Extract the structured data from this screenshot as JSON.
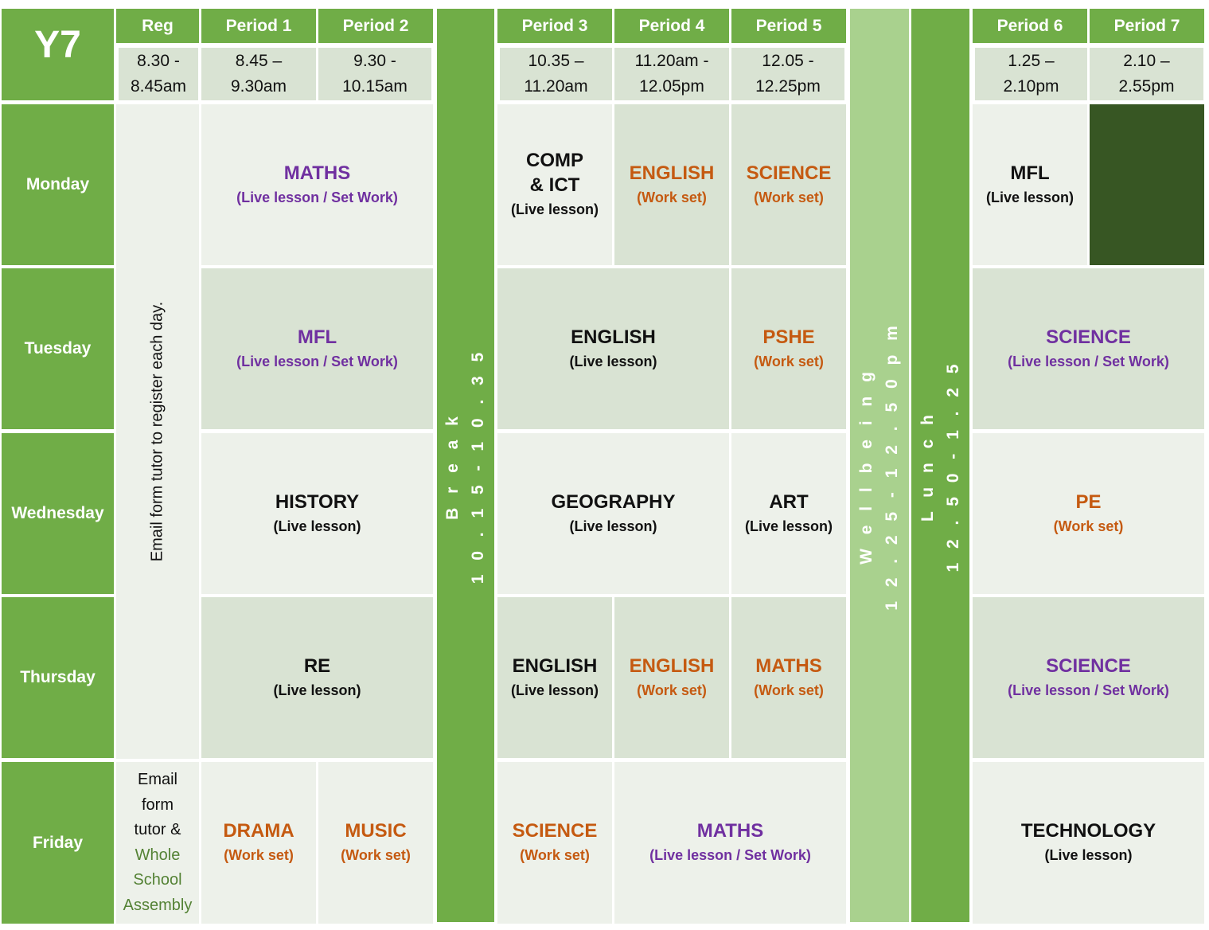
{
  "year": "Y7",
  "headers": {
    "reg": "Reg",
    "p1": "Period 1",
    "p2": "Period 2",
    "p3": "Period 3",
    "p4": "Period 4",
    "p5": "Period 5",
    "p6": "Period 6",
    "p7": "Period 7"
  },
  "times": {
    "reg": [
      "8.30 -",
      "8.45am"
    ],
    "p1": [
      "8.45 –",
      "9.30am"
    ],
    "p2": [
      "9.30 -",
      "10.15am"
    ],
    "p3": [
      "10.35 –",
      "11.20am"
    ],
    "p4": [
      "11.20am -",
      "12.05pm"
    ],
    "p5": [
      "12.05 -",
      "12.25pm"
    ],
    "p6": [
      "1.25 –",
      "2.10pm"
    ],
    "p7": [
      "2.10 –",
      "2.55pm"
    ]
  },
  "days": [
    "Monday",
    "Tuesday",
    "Wednesday",
    "Thursday",
    "Friday"
  ],
  "bands": {
    "break": [
      "B r e a k",
      "1 0 . 1 5 - 1 0 . 3 5"
    ],
    "wellbeing": [
      "W e l l b e i n g",
      "1 2 . 2 5  -  1 2 . 5 0 p m"
    ],
    "lunch": [
      "L u n c h",
      "1 2 . 5 0 - 1 . 2 5"
    ]
  },
  "reg_note": "Email form  tutor to register each day.",
  "friday_reg": {
    "lines": [
      "Email",
      "form",
      "tutor &"
    ],
    "green_lines": [
      "Whole",
      "School",
      "Assembly"
    ]
  },
  "lessons": {
    "mon_p12": {
      "subject": "MATHS",
      "note": "(Live lesson / Set Work)"
    },
    "mon_p3": {
      "subject": "COMP & ICT",
      "note": "(Live lesson)"
    },
    "mon_p4": {
      "subject": "ENGLISH",
      "note": "(Work set)"
    },
    "mon_p5": {
      "subject": "SCIENCE",
      "note": "(Work set)"
    },
    "mon_p6": {
      "subject": "MFL",
      "note": "(Live lesson)"
    },
    "tue_p12": {
      "subject": "MFL",
      "note": "(Live lesson / Set Work)"
    },
    "tue_p34": {
      "subject": "ENGLISH",
      "note": "(Live lesson)"
    },
    "tue_p5": {
      "subject": "PSHE",
      "note": "(Work set)"
    },
    "tue_p67": {
      "subject": "SCIENCE",
      "note": "(Live lesson / Set Work)"
    },
    "wed_p12": {
      "subject": "HISTORY",
      "note": "(Live lesson)"
    },
    "wed_p34": {
      "subject": "GEOGRAPHY",
      "note": "(Live lesson)"
    },
    "wed_p5": {
      "subject": "ART",
      "note": "(Live lesson)"
    },
    "wed_p67": {
      "subject": "PE",
      "note": "(Work set)"
    },
    "thu_p12": {
      "subject": "RE",
      "note": "(Live lesson)"
    },
    "thu_p3": {
      "subject": "ENGLISH",
      "note": "(Live lesson)"
    },
    "thu_p4": {
      "subject": "ENGLISH",
      "note": "(Work set)"
    },
    "thu_p5": {
      "subject": "MATHS",
      "note": "(Work set)"
    },
    "thu_p67": {
      "subject": "SCIENCE",
      "note": "(Live lesson / Set Work)"
    },
    "fri_p1": {
      "subject": "DRAMA",
      "note": "(Work set)"
    },
    "fri_p2": {
      "subject": "MUSIC",
      "note": "(Work set)"
    },
    "fri_p3": {
      "subject": "SCIENCE",
      "note": "(Work set)"
    },
    "fri_p45": {
      "subject": "MATHS",
      "note": "(Live lesson / Set Work)"
    },
    "fri_p67": {
      "subject": "TECHNOLOGY",
      "note": "(Live lesson)"
    }
  },
  "colors": {
    "header_green": "#70ad47",
    "light_band": "#a9d18e",
    "empty_cell": "#375623",
    "purple": "#7030a0",
    "orange": "#c55a11"
  }
}
